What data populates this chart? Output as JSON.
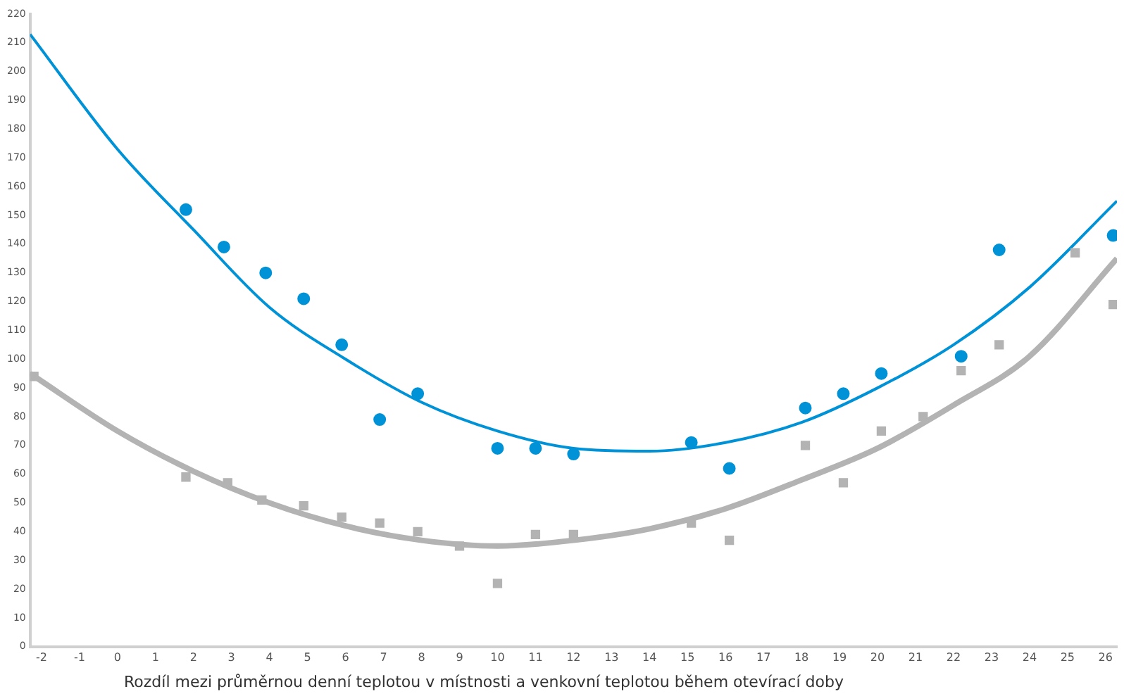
{
  "chart_data": {
    "type": "scatter",
    "xlabel": "Rozdíl mezi průměrnou denní teplotou v místnosti a venkovní teplotou během otevírací doby",
    "xlim": [
      -2.3,
      26.3
    ],
    "xticks": [
      -2,
      -1,
      0,
      1,
      2,
      3,
      4,
      5,
      6,
      7,
      8,
      9,
      10,
      11,
      12,
      13,
      14,
      15,
      16,
      17,
      18,
      19,
      20,
      21,
      22,
      23,
      24,
      25,
      26
    ],
    "ylim": [
      0,
      220
    ],
    "yticks": [
      0,
      10,
      20,
      30,
      40,
      50,
      60,
      70,
      80,
      90,
      100,
      110,
      120,
      130,
      140,
      150,
      160,
      170,
      180,
      190,
      200,
      210,
      220
    ],
    "grid": false,
    "legend": false,
    "series": [
      {
        "marker": "circle",
        "color": "#0092d6",
        "x": [
          1.8,
          2.8,
          3.9,
          4.9,
          5.9,
          6.9,
          7.9,
          10,
          11,
          12,
          15.1,
          16.1,
          18.1,
          19.1,
          20.1,
          22.2,
          23.2,
          26.2
        ],
        "values": [
          152,
          139,
          130,
          121,
          105,
          79,
          88,
          69,
          69,
          67,
          71,
          62,
          83,
          88,
          95,
          101,
          138,
          143
        ]
      },
      {
        "marker": "square",
        "color": "#b3b3b3",
        "x": [
          -2.2,
          1.8,
          2.9,
          3.8,
          4.9,
          5.9,
          6.9,
          7.9,
          9,
          10,
          11,
          12,
          15.1,
          16.1,
          18.1,
          19.1,
          20.1,
          21.2,
          22.2,
          23.2,
          25.2,
          26.2
        ],
        "values": [
          94,
          59,
          57,
          51,
          49,
          45,
          43,
          40,
          35,
          22,
          39,
          39,
          43,
          37,
          70,
          57,
          75,
          80,
          96,
          105,
          137,
          119
        ]
      },
      {
        "type": "line",
        "marker": "none",
        "line_style": "solid",
        "color": "#0092d6",
        "x": [
          -2.3,
          0,
          2,
          4,
          6,
          8,
          10,
          12,
          14,
          16,
          18,
          20,
          22,
          24,
          26.3
        ],
        "values": [
          213,
          173,
          145,
          118,
          100,
          85,
          75,
          69,
          68,
          71,
          78,
          90,
          105,
          125,
          155
        ]
      },
      {
        "type": "line",
        "marker": "none",
        "line_style": "solid",
        "color": "#b3b3b3",
        "x": [
          -2.3,
          0,
          2,
          4,
          6,
          8,
          10,
          12,
          14,
          16,
          18,
          20,
          22,
          24,
          26.3
        ],
        "values": [
          95,
          75,
          61,
          50,
          42,
          37,
          35,
          37,
          41,
          48,
          58,
          69,
          84,
          101,
          135
        ]
      }
    ]
  }
}
